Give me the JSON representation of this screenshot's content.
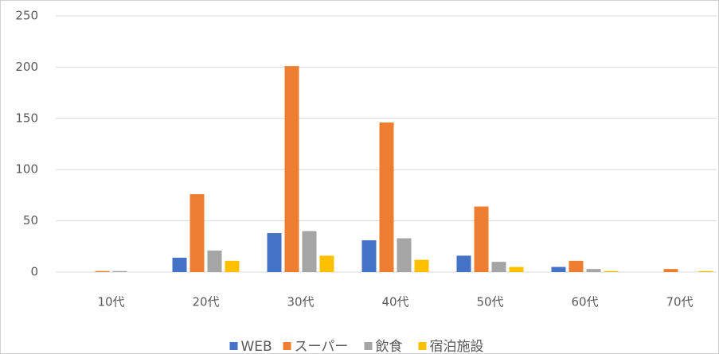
{
  "chart_data": {
    "type": "bar",
    "categories": [
      "10代",
      "20代",
      "30代",
      "40代",
      "50代",
      "60代",
      "70代"
    ],
    "series": [
      {
        "name": "WEB",
        "color": "#4472c4",
        "values": [
          0,
          14,
          38,
          31,
          16,
          5,
          0
        ]
      },
      {
        "name": "スーパー",
        "color": "#ed7d31",
        "values": [
          1,
          76,
          201,
          146,
          64,
          11,
          3
        ]
      },
      {
        "name": "飲食",
        "color": "#a5a5a5",
        "values": [
          1,
          21,
          40,
          33,
          10,
          3,
          0
        ]
      },
      {
        "name": "宿泊施設",
        "color": "#ffc000",
        "values": [
          0,
          11,
          16,
          12,
          5,
          1,
          1
        ]
      }
    ],
    "ylim": [
      0,
      250
    ],
    "yticks": [
      0,
      50,
      100,
      150,
      200,
      250
    ],
    "grid": true,
    "legend": "bottom"
  }
}
